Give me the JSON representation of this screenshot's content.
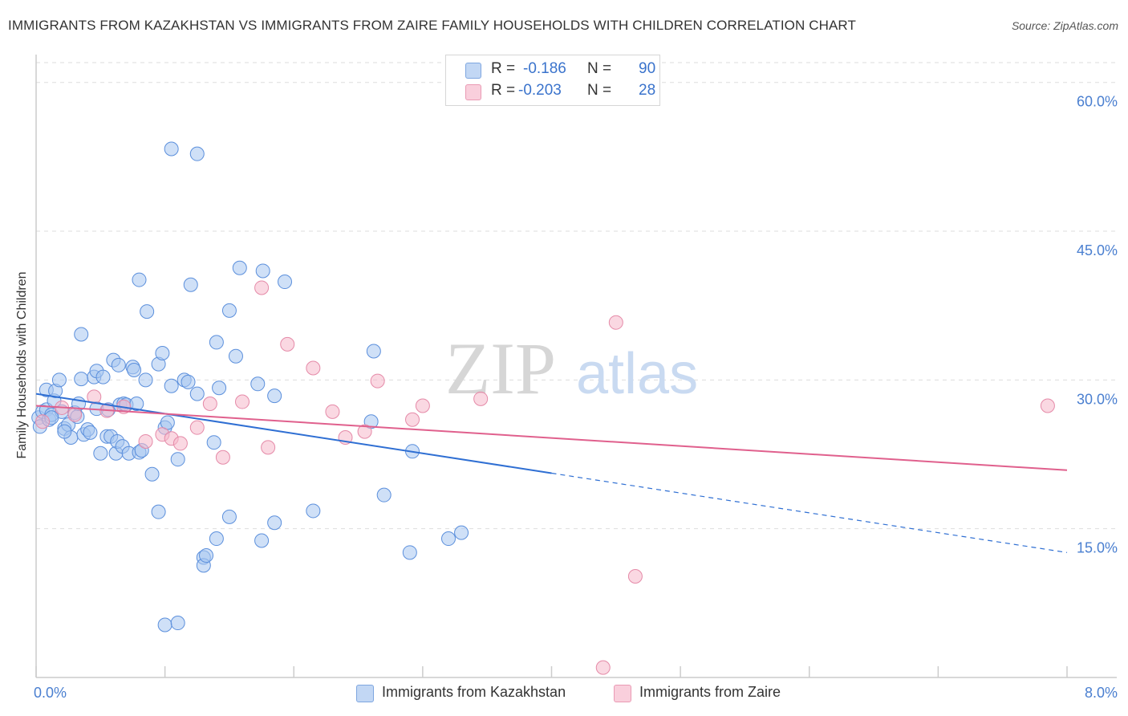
{
  "title": "IMMIGRANTS FROM KAZAKHSTAN VS IMMIGRANTS FROM ZAIRE FAMILY HOUSEHOLDS WITH CHILDREN CORRELATION CHART",
  "source": "Source: ZipAtlas.com",
  "legend": {
    "rows": [
      {
        "r_label": "R =",
        "r_value": "-0.186",
        "n_label": "N =",
        "n_value": "90"
      },
      {
        "r_label": "R =",
        "r_value": "-0.203",
        "n_label": "N =",
        "n_value": "28"
      }
    ]
  },
  "bottom_legend": [
    "Immigrants from Kazakhstan",
    "Immigrants from Zaire"
  ],
  "watermark": {
    "zip": "ZIP",
    "atlas": "atlas"
  },
  "colors": {
    "kazakhstan_fill": "#a8c6f0",
    "kazakhstan_stroke": "#5b8fdc",
    "kazakhstan_line": "#2f6fd3",
    "zaire_fill": "#f6b8cb",
    "zaire_stroke": "#e58aa8",
    "zaire_line": "#e0608d",
    "tick_text": "#4a7fd0",
    "grid": "#dddddd"
  },
  "chart_data": {
    "type": "scatter",
    "title": "IMMIGRANTS FROM KAZAKHSTAN VS IMMIGRANTS FROM ZAIRE FAMILY HOUSEHOLDS WITH CHILDREN CORRELATION CHART",
    "xlabel": "",
    "ylabel": "Family Households with Children",
    "xlim": [
      0,
      8
    ],
    "ylim": [
      0,
      62
    ],
    "x_tick_labels": [
      "0.0%",
      "8.0%"
    ],
    "y_ticks": [
      15,
      30,
      45,
      60
    ],
    "y_tick_labels": [
      "15.0%",
      "30.0%",
      "45.0%",
      "60.0%"
    ],
    "grid": true,
    "series": [
      {
        "name": "Immigrants from Kazakhstan",
        "r": -0.186,
        "n": 90,
        "trend": {
          "x0": 0,
          "y0": 28.6,
          "x1": 4.0,
          "y1": 20.6,
          "dashed_to_x": 8.0,
          "dashed_to_y": 12.6
        },
        "points": [
          [
            0.02,
            26.2
          ],
          [
            0.03,
            25.3
          ],
          [
            0.05,
            26.8
          ],
          [
            0.08,
            27.0
          ],
          [
            0.08,
            29.0
          ],
          [
            0.1,
            26.0
          ],
          [
            0.12,
            26.5
          ],
          [
            0.14,
            27.9
          ],
          [
            0.15,
            28.9
          ],
          [
            0.18,
            30.0
          ],
          [
            0.2,
            26.8
          ],
          [
            0.22,
            25.1
          ],
          [
            0.25,
            25.5
          ],
          [
            0.27,
            24.2
          ],
          [
            0.3,
            26.7
          ],
          [
            0.32,
            26.3
          ],
          [
            0.33,
            27.6
          ],
          [
            0.35,
            30.1
          ],
          [
            0.35,
            34.6
          ],
          [
            0.37,
            24.5
          ],
          [
            0.4,
            25.0
          ],
          [
            0.42,
            24.7
          ],
          [
            0.45,
            30.3
          ],
          [
            0.47,
            30.9
          ],
          [
            0.47,
            27.1
          ],
          [
            0.5,
            22.6
          ],
          [
            0.52,
            30.3
          ],
          [
            0.55,
            24.3
          ],
          [
            0.56,
            27.0
          ],
          [
            0.58,
            24.3
          ],
          [
            0.6,
            32.0
          ],
          [
            0.62,
            22.6
          ],
          [
            0.63,
            23.8
          ],
          [
            0.65,
            27.5
          ],
          [
            0.67,
            23.3
          ],
          [
            0.68,
            27.6
          ],
          [
            0.7,
            27.5
          ],
          [
            0.72,
            22.6
          ],
          [
            0.75,
            31.3
          ],
          [
            0.76,
            31.0
          ],
          [
            0.78,
            27.6
          ],
          [
            0.8,
            40.1
          ],
          [
            0.8,
            22.7
          ],
          [
            0.82,
            22.9
          ],
          [
            0.85,
            30.0
          ],
          [
            0.86,
            36.9
          ],
          [
            0.9,
            20.5
          ],
          [
            0.95,
            31.6
          ],
          [
            0.95,
            16.7
          ],
          [
            0.98,
            32.7
          ],
          [
            1.0,
            25.2
          ],
          [
            1.02,
            25.7
          ],
          [
            1.05,
            29.4
          ],
          [
            1.05,
            53.3
          ],
          [
            1.1,
            22.0
          ],
          [
            1.15,
            30.0
          ],
          [
            1.18,
            29.8
          ],
          [
            1.2,
            39.6
          ],
          [
            1.25,
            28.6
          ],
          [
            1.3,
            12.1
          ],
          [
            1.3,
            11.3
          ],
          [
            1.32,
            12.3
          ],
          [
            1.38,
            23.7
          ],
          [
            1.4,
            33.8
          ],
          [
            1.42,
            29.2
          ],
          [
            1.5,
            37.0
          ],
          [
            1.5,
            16.2
          ],
          [
            1.55,
            32.4
          ],
          [
            1.58,
            41.3
          ],
          [
            1.72,
            29.6
          ],
          [
            1.75,
            13.8
          ],
          [
            1.76,
            41.0
          ],
          [
            1.85,
            28.4
          ],
          [
            1.85,
            15.6
          ],
          [
            1.93,
            39.9
          ],
          [
            2.15,
            16.8
          ],
          [
            2.6,
            25.8
          ],
          [
            2.62,
            32.9
          ],
          [
            2.7,
            18.4
          ],
          [
            2.9,
            12.6
          ],
          [
            2.92,
            22.8
          ],
          [
            3.2,
            14.0
          ],
          [
            3.3,
            14.6
          ],
          [
            1.25,
            52.8
          ],
          [
            1.0,
            5.3
          ],
          [
            1.1,
            5.5
          ],
          [
            1.4,
            14.0
          ],
          [
            0.12,
            26.2
          ],
          [
            0.22,
            24.8
          ],
          [
            0.64,
            31.5
          ]
        ]
      },
      {
        "name": "Immigrants from Zaire",
        "r": -0.203,
        "n": 28,
        "trend": {
          "x0": 0,
          "y0": 27.4,
          "x1": 8.0,
          "y1": 20.9
        },
        "points": [
          [
            0.05,
            25.8
          ],
          [
            0.2,
            27.2
          ],
          [
            0.3,
            26.5
          ],
          [
            0.45,
            28.3
          ],
          [
            0.55,
            26.9
          ],
          [
            0.68,
            27.3
          ],
          [
            0.85,
            23.8
          ],
          [
            0.98,
            24.5
          ],
          [
            1.05,
            24.1
          ],
          [
            1.12,
            23.6
          ],
          [
            1.25,
            25.2
          ],
          [
            1.35,
            27.6
          ],
          [
            1.45,
            22.2
          ],
          [
            1.6,
            27.8
          ],
          [
            1.75,
            39.3
          ],
          [
            1.8,
            23.2
          ],
          [
            1.95,
            33.6
          ],
          [
            2.15,
            31.2
          ],
          [
            2.3,
            26.8
          ],
          [
            2.4,
            24.2
          ],
          [
            2.55,
            24.8
          ],
          [
            2.65,
            29.9
          ],
          [
            2.92,
            26.0
          ],
          [
            3.0,
            27.4
          ],
          [
            3.45,
            28.1
          ],
          [
            4.5,
            35.8
          ],
          [
            4.65,
            10.2
          ],
          [
            7.85,
            27.4
          ]
        ]
      },
      {
        "name": "Immigrants from Zaire",
        "points": [
          [
            4.4,
            1.0
          ]
        ]
      }
    ]
  }
}
